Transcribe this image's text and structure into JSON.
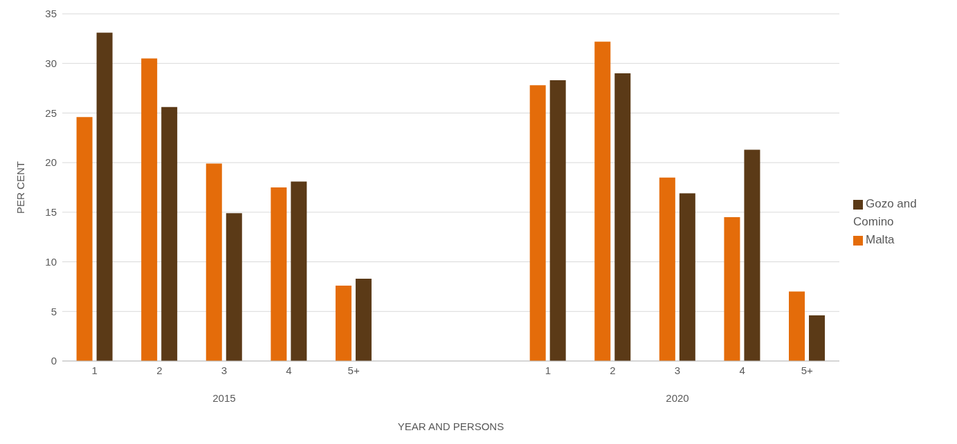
{
  "chart_data": {
    "type": "bar",
    "xlabel": "YEAR AND PERSONS",
    "ylabel": "PER CENT",
    "categories": [
      "1",
      "2",
      "3",
      "4",
      "5+",
      null,
      null,
      "1",
      "2",
      "3",
      "4",
      "5+"
    ],
    "series": [
      {
        "name": "Malta",
        "color": "#e46c0a",
        "values": [
          24.6,
          30.5,
          19.9,
          17.5,
          7.6,
          null,
          null,
          27.8,
          32.2,
          18.5,
          14.5,
          7.0
        ]
      },
      {
        "name": "Gozo and Comino",
        "color": "#5b3a17",
        "values": [
          33.1,
          25.6,
          14.9,
          18.1,
          8.3,
          null,
          null,
          28.3,
          29.0,
          16.9,
          21.3,
          4.6
        ]
      }
    ],
    "annotations": [
      "2015",
      "2020"
    ],
    "ylim": [
      0,
      35
    ],
    "yticks": [
      0,
      5,
      10,
      15,
      20,
      25,
      30,
      35
    ],
    "grid": "y",
    "legend": "right"
  }
}
